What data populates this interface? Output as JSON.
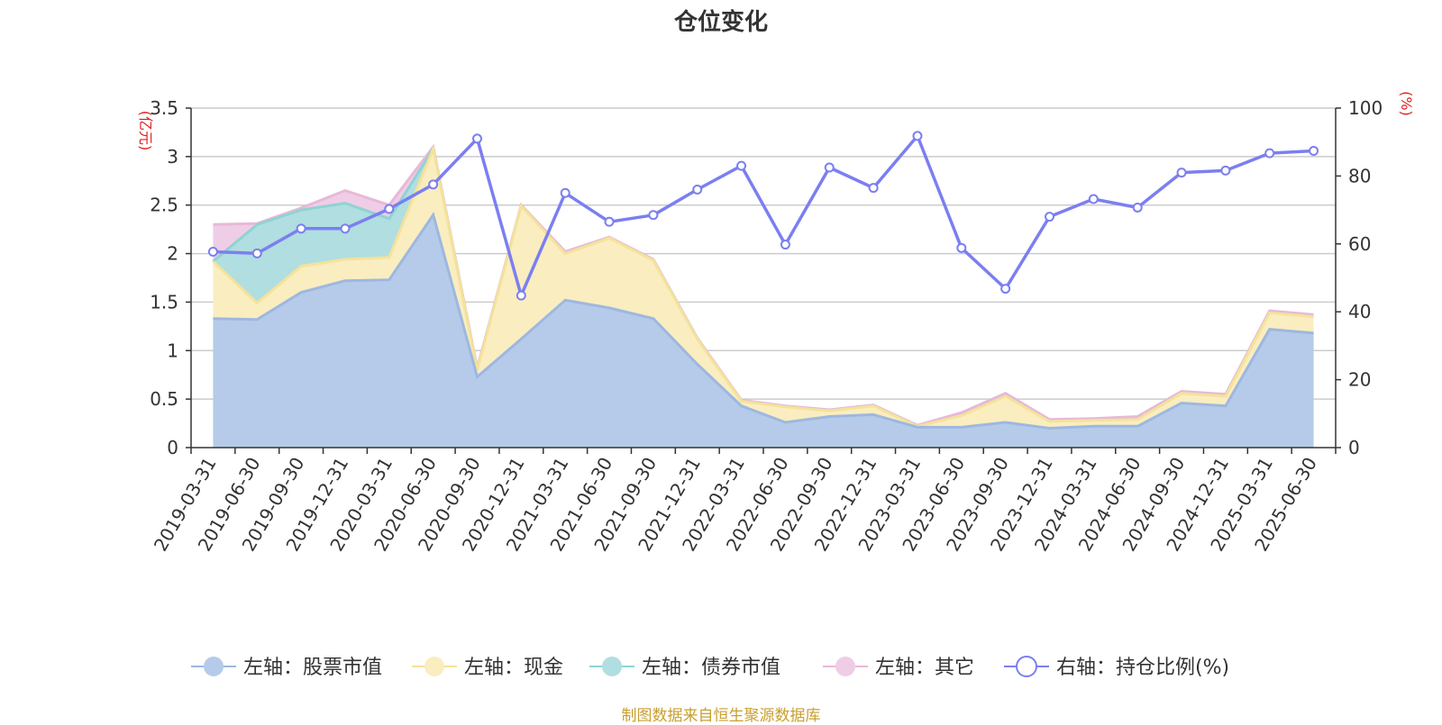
{
  "title": "仓位变化",
  "footer": "制图数据来自恒生聚源数据库",
  "chart_data": {
    "type": "area",
    "title": "仓位变化",
    "categories": [
      "2019-03-31",
      "2019-06-30",
      "2019-09-30",
      "2019-12-31",
      "2020-03-31",
      "2020-06-30",
      "2020-09-30",
      "2020-12-31",
      "2021-03-31",
      "2021-06-30",
      "2021-09-30",
      "2021-12-31",
      "2022-03-31",
      "2022-06-30",
      "2022-09-30",
      "2022-12-31",
      "2023-03-31",
      "2023-06-30",
      "2023-09-30",
      "2023-12-31",
      "2024-03-31",
      "2024-06-30",
      "2024-09-30",
      "2024-12-31",
      "2025-03-31",
      "2025-06-30"
    ],
    "left_axis": {
      "unit": "(亿元)",
      "ylim": [
        0,
        3.5
      ],
      "ticks": [
        "0",
        "0.5",
        "1",
        "1.5",
        "2",
        "2.5",
        "3",
        "3.5"
      ]
    },
    "right_axis": {
      "unit": "(%)",
      "ylim": [
        0,
        100
      ],
      "ticks": [
        "0",
        "20",
        "40",
        "60",
        "80",
        "100"
      ]
    },
    "stacked_series": [
      {
        "name": "左轴：股票市值",
        "color": "#9db8e0",
        "fill": "#b6cbe9",
        "values": [
          1.33,
          1.32,
          1.6,
          1.72,
          1.73,
          2.4,
          0.73,
          1.12,
          1.52,
          1.44,
          1.33,
          0.86,
          0.43,
          0.26,
          0.32,
          0.34,
          0.21,
          0.21,
          0.26,
          0.2,
          0.22,
          0.22,
          0.46,
          0.43,
          1.22,
          1.18
        ]
      },
      {
        "name": "左轴：现金",
        "color": "#f5e29a",
        "fill": "#faedc0",
        "values": [
          0.59,
          0.17,
          0.27,
          0.22,
          0.23,
          0.68,
          0.07,
          1.37,
          0.48,
          0.72,
          0.6,
          0.26,
          0.05,
          0.16,
          0.06,
          0.09,
          0.01,
          0.12,
          0.27,
          0.07,
          0.06,
          0.07,
          0.1,
          0.1,
          0.17,
          0.17
        ]
      },
      {
        "name": "左轴：债券市值",
        "color": "#8fd3d3",
        "fill": "#b1dee0",
        "values": [
          0,
          0.81,
          0.58,
          0.58,
          0.4,
          0,
          0,
          0,
          0,
          0,
          0,
          0,
          0,
          0,
          0,
          0,
          0,
          0,
          0,
          0,
          0,
          0,
          0,
          0,
          0,
          0
        ]
      },
      {
        "name": "左轴：其它",
        "color": "#e8b8d8",
        "fill": "#f0cde6",
        "values": [
          0.38,
          0.01,
          0.02,
          0.13,
          0.14,
          0.02,
          0.02,
          0.01,
          0.02,
          0.01,
          0.01,
          0.01,
          0.01,
          0.01,
          0.01,
          0.01,
          0.01,
          0.03,
          0.03,
          0.02,
          0.02,
          0.03,
          0.02,
          0.02,
          0.02,
          0.02
        ]
      }
    ],
    "line_series": {
      "name": "右轴：持仓比例(%)",
      "color": "#7b7ff0",
      "values": [
        57.7,
        57.2,
        64.5,
        64.5,
        70.3,
        77.5,
        91.0,
        44.8,
        75.0,
        66.5,
        68.5,
        76.0,
        83.0,
        59.8,
        82.5,
        76.5,
        91.8,
        58.8,
        46.8,
        68.0,
        73.2,
        70.7,
        81.0,
        81.6,
        86.7,
        87.4
      ]
    },
    "legend_position": "bottom",
    "grid": true
  }
}
